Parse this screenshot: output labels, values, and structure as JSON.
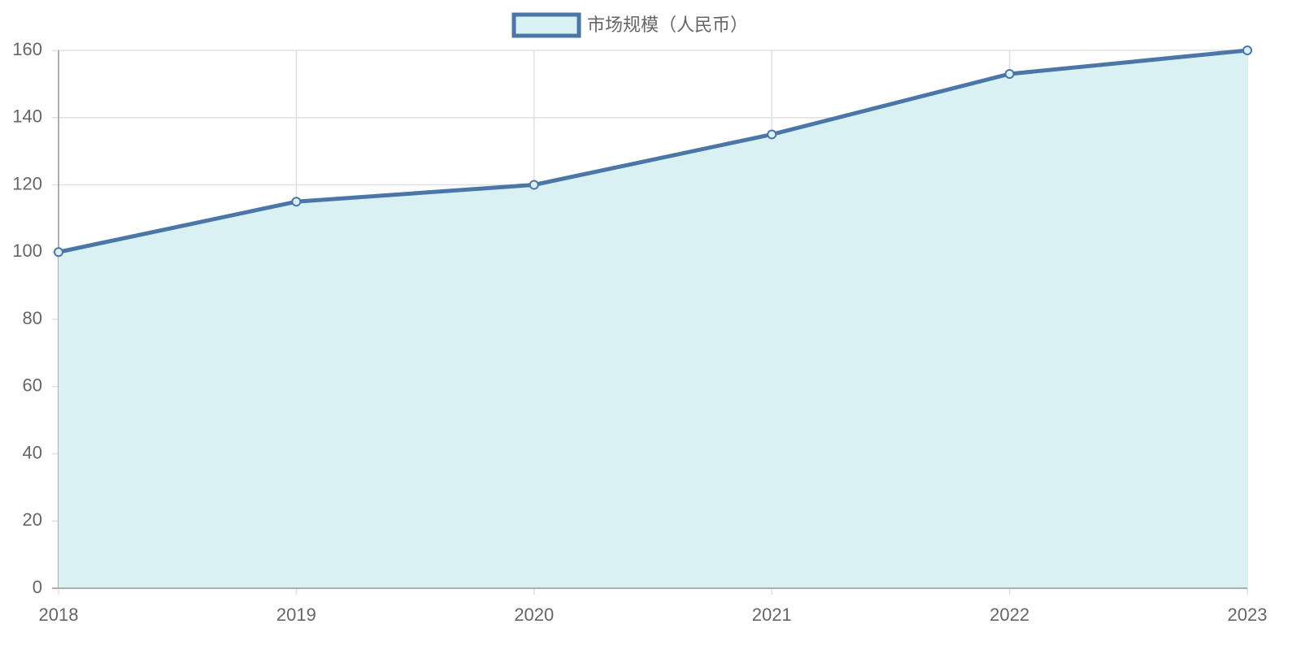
{
  "chart_data": {
    "type": "area",
    "categories": [
      "2018",
      "2019",
      "2020",
      "2021",
      "2022",
      "2023"
    ],
    "series": [
      {
        "name": "市场规模（人民币）",
        "color": "#4a76a8",
        "fill": "#d9f1f2",
        "values": [
          100,
          115,
          120,
          135,
          153,
          160
        ]
      }
    ],
    "ylim": [
      0,
      160
    ],
    "yticks": [
      0,
      20,
      40,
      60,
      80,
      100,
      120,
      140,
      160
    ],
    "grid": true,
    "legend": "top"
  }
}
